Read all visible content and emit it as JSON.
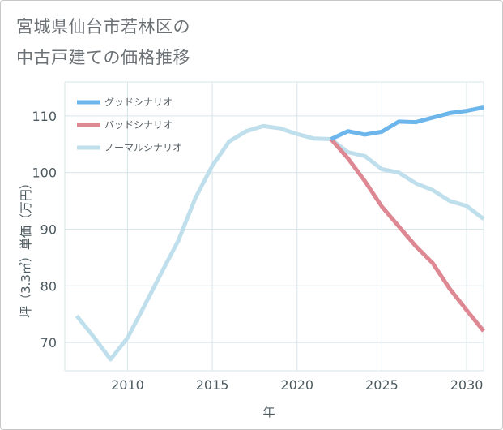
{
  "title_lines": [
    "宮城県仙台市若林区の",
    "中古戸建ての価格推移"
  ],
  "chart_data": {
    "type": "line",
    "title": "宮城県仙台市若林区の中古戸建ての価格推移",
    "xlabel": "年",
    "ylabel": "坪（3.3㎡）単価（万円）",
    "xlim": [
      2006.3,
      2031
    ],
    "ylim": [
      65,
      116
    ],
    "x_ticks": [
      2010,
      2015,
      2020,
      2025,
      2030
    ],
    "y_ticks": [
      70,
      80,
      90,
      100,
      110
    ],
    "grid": true,
    "legend_position": "top-left",
    "series": [
      {
        "name": "グッドシナリオ",
        "color": "#6cb6ec",
        "points": [
          [
            2022,
            105.9
          ],
          [
            2023,
            107.3
          ],
          [
            2024,
            106.7
          ],
          [
            2025,
            107.2
          ],
          [
            2026,
            109.0
          ],
          [
            2027,
            108.9
          ],
          [
            2028,
            109.7
          ],
          [
            2029,
            110.5
          ],
          [
            2030,
            110.9
          ],
          [
            2031,
            111.5
          ]
        ]
      },
      {
        "name": "バッドシナリオ",
        "color": "#dd8893",
        "points": [
          [
            2022,
            105.9
          ],
          [
            2023,
            102.5
          ],
          [
            2024,
            98.5
          ],
          [
            2025,
            94.0
          ],
          [
            2026,
            90.5
          ],
          [
            2027,
            87.0
          ],
          [
            2028,
            84.0
          ],
          [
            2029,
            79.5
          ],
          [
            2030,
            75.7
          ],
          [
            2031,
            72.0
          ]
        ]
      },
      {
        "name": "ノーマルシナリオ",
        "color": "#bfdfec",
        "points": [
          [
            2007,
            74.7
          ],
          [
            2008,
            71.0
          ],
          [
            2009,
            67.0
          ],
          [
            2010,
            70.8
          ],
          [
            2011,
            76.5
          ],
          [
            2012,
            82.3
          ],
          [
            2013,
            88.0
          ],
          [
            2014,
            95.5
          ],
          [
            2015,
            101.2
          ],
          [
            2016,
            105.5
          ],
          [
            2017,
            107.3
          ],
          [
            2018,
            108.2
          ],
          [
            2019,
            107.8
          ],
          [
            2020,
            106.8
          ],
          [
            2021,
            106.0
          ],
          [
            2022,
            105.9
          ],
          [
            2023,
            103.6
          ],
          [
            2024,
            102.9
          ],
          [
            2025,
            100.6
          ],
          [
            2026,
            100.0
          ],
          [
            2027,
            98.1
          ],
          [
            2028,
            96.9
          ],
          [
            2029,
            95.0
          ],
          [
            2030,
            94.1
          ],
          [
            2031,
            91.8
          ]
        ]
      }
    ]
  }
}
